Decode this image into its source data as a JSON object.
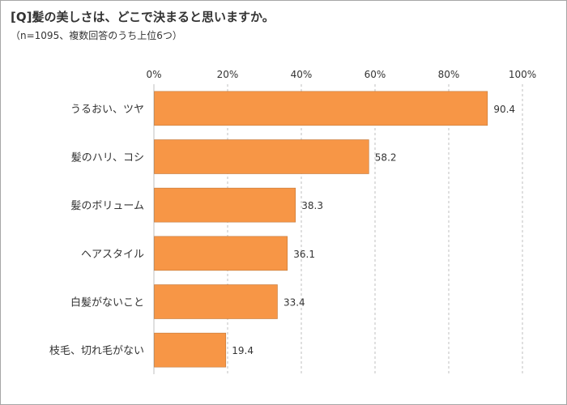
{
  "chart_data": {
    "type": "bar",
    "orientation": "horizontal",
    "title": "[Q]髪の美しさは、どこで決まると思いますか。",
    "subtitle": "（n=1095、複数回答のうち上位6つ）",
    "categories": [
      "うるおい、ツヤ",
      "髪のハリ、コシ",
      "髪のボリューム",
      "ヘアスタイル",
      "白髪がないこと",
      "枝毛、切れ毛がない"
    ],
    "values": [
      90.4,
      58.2,
      38.3,
      36.1,
      33.4,
      19.4
    ],
    "value_labels": [
      "90.4",
      "58.2",
      "38.3",
      "36.1",
      "33.4",
      "19.4"
    ],
    "xlim": [
      0,
      100
    ],
    "x_ticks": [
      "0%",
      "20%",
      "40%",
      "60%",
      "80%",
      "100%"
    ],
    "x_tick_values": [
      0,
      20,
      40,
      60,
      80,
      100
    ],
    "grid": true,
    "axis_position": "top",
    "legend": "none",
    "bar_color": "#f79646",
    "bar_border_color": "#c0783a",
    "grid_color": "#bfbfbf",
    "text_color": "#333333"
  }
}
